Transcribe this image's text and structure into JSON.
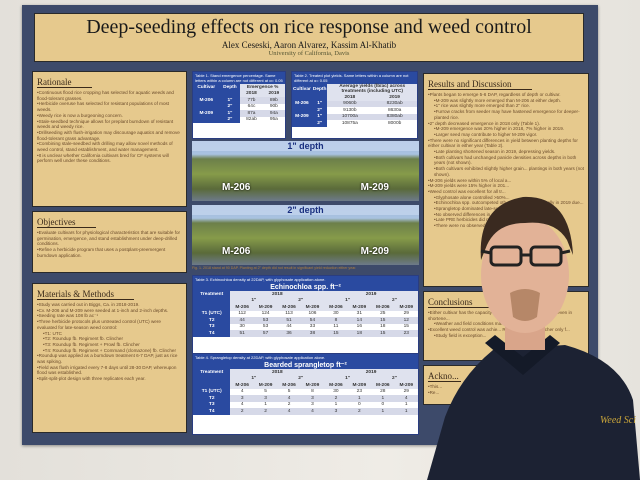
{
  "poster": {
    "title": "Deep-seeding effects on rice response and weed control",
    "authors": "Alex Ceseski, Aaron Alvarez, Kassim Al-Khatib",
    "affiliation": "University of California, Davis",
    "rationale": {
      "heading": "Rationale",
      "items": [
        "Continuous flood rice cropping has selected for aquatic weeds and flood-tolerant grasses.",
        "Herbicide overuse has selected for resistant populations of most weeds.",
        "Weedy rice is now a burgeoning concern.",
        "Stale-seedbed technique allows for preplant burndown of resistant weeds and weedy rice.",
        "Drillseeding with flush-irrigation may discourage aquatics and remove flood-tolerant grass advantage.",
        "Combining stale-seedbed with drilling may allow novel methods of weed control, stand establishment, and water management.",
        "It is unclear whether California cultivars bred for CF systems will perform well under these conditions."
      ]
    },
    "objectives": {
      "heading": "Objectives",
      "items": [
        "Evaluate cultivars for physiological characteristics that are suitable for germination, emergence, and stand establishment under deep-drilled conditions.",
        "Refine a herbicide program that uses a postplant-preemergent burndown application."
      ]
    },
    "methods": {
      "heading": "Materials & Methods",
      "items": [
        {
          "t": "Study was carried out in Biggs, Ca. in 2018-2019.",
          "sub": false
        },
        {
          "t": "Cv. M-206 and M-209 were seeded at 1-inch and 2-inch depths.",
          "sub": false
        },
        {
          "t": "Seeding rate was 108 lb ac⁻¹",
          "sub": false
        },
        {
          "t": "Three herbicide protocols plus untreated control (UTC) were evaluated for late-season weed control:",
          "sub": false
        },
        {
          "t": "T1: UTC",
          "sub": true
        },
        {
          "t": "T2: Roundup fb. Regiment fb. Clincher",
          "sub": true
        },
        {
          "t": "T3: Roundup fb. Regiment + Prowl fb. Clincher",
          "sub": true
        },
        {
          "t": "T4: Roundup fb. Regiment + Command (clomazone) fb. Clincher",
          "sub": true
        },
        {
          "t": "Roundup was applied as a burndown treatment 6-7 DAP, just as rice was spiking.",
          "sub": false
        },
        {
          "t": "Field was flush irrigated every 7-8 days until 28-30 DAP, whereupon flood was established.",
          "sub": false
        },
        {
          "t": "Split-split-plot design with three replicates each year.",
          "sub": false
        }
      ]
    },
    "results": {
      "heading": "Results and Discussion",
      "items": [
        {
          "t": "Plants began to emerge 5-6 DAP, regardless of depth or cultivar.",
          "sub": false
        },
        {
          "t": "M-209 was slightly more emerged than M-206 at either depth.",
          "sub": true
        },
        {
          "t": "1\" rice was slightly more emerged than 2\" rice.",
          "sub": true
        },
        {
          "t": "Furrow cracks from seeder may have hastened emergence for deeper-planted rice.",
          "sub": true
        },
        {
          "t": "2\" depth decreased emergence in 2018 only (Table 1).",
          "sub": false
        },
        {
          "t": "M-209 emergence was 20% higher in 2018, 7% higher in 2019.",
          "sub": true
        },
        {
          "t": "Larger seed may contribute to higher M-209 vigor.",
          "sub": true
        },
        {
          "t": "There were no significant differences in yield between planting depths for either cultivar in either year (Table 2).",
          "sub": false
        },
        {
          "t": "Late planting shortened season in 2019, depressing yields.",
          "sub": true
        },
        {
          "t": "Both cultivars had unchanged panicle densities across depths in both years (not shown).",
          "sub": true
        },
        {
          "t": "Both cultivars exhibited slightly higher grain... plantings in both years (not shown).",
          "sub": true
        },
        {
          "t": "M-206 yields were within 5% of local a...",
          "sub": false
        },
        {
          "t": "M-209 yields were 15% higher in 201...",
          "sub": false
        },
        {
          "t": "Weed control was excellent for all tr...",
          "sub": false
        },
        {
          "t": "Glyphosate alone controlled >50%...",
          "sub": true
        },
        {
          "t": "Echinochloa spp. outcompeted oth... decreased drastically in 2019 due...",
          "sub": true
        },
        {
          "t": "Sprangletop dominated late-seaso...",
          "sub": true
        },
        {
          "t": "No observed differences in contr...",
          "sub": true
        },
        {
          "t": "Late PRE herbicides did not add t...",
          "sub": true
        },
        {
          "t": "There were no observed aquatic w...",
          "sub": true
        }
      ]
    },
    "conclusions": {
      "heading": "Conclusions",
      "items": [
        {
          "t": "Either cultivar has the capacity to provid... drillseed cultivation, even in shortene...",
          "sub": false
        },
        {
          "t": "Weather and field conditions ma...",
          "sub": true
        },
        {
          "t": "Excellent weed control was achie... Regiment, using Clincher only f...",
          "sub": false
        },
        {
          "t": "Study field is exception...",
          "sub": true
        }
      ]
    },
    "acknowledgements": {
      "heading": "Ackno...",
      "items": [
        "This...",
        "Re..."
      ]
    },
    "table1": {
      "caption": "Table 1. Stand emergence percentage. Same letters within a column are not different at α= 0.05",
      "headers": [
        "Cultivar",
        "Depth",
        "Emergence %"
      ],
      "years": [
        "2018",
        "2019"
      ],
      "rows": [
        [
          "M-206",
          "1\"",
          "77b",
          "89b"
        ],
        [
          "",
          "2\"",
          "64c",
          "90b"
        ],
        [
          "M-209",
          "1\"",
          "87a",
          "94a"
        ],
        [
          "",
          "2\"",
          "82ab",
          "95a"
        ]
      ]
    },
    "table2": {
      "caption": "Table 2. Treated plot yields. Same letters within a column are not different at α= 0.05",
      "headers": [
        "Cultivar",
        "Depth",
        "Average yields (lb/ac) across treatments (including UTC)"
      ],
      "years": [
        "2018",
        "2019"
      ],
      "rows": [
        [
          "M-206",
          "1\"",
          "9060b",
          "8230ab"
        ],
        [
          "",
          "2\"",
          "9130b",
          "8630a"
        ],
        [
          "M-209",
          "1\"",
          "10700a",
          "8380ab"
        ],
        [
          "",
          "2\"",
          "10875a",
          "8000b"
        ]
      ]
    },
    "photos": {
      "p1": {
        "label": "1\" depth",
        "left": "M-206",
        "right": "M-209"
      },
      "p2": {
        "label": "2\" depth",
        "left": "M-206",
        "right": "M-209"
      },
      "caption": "Fig. 1. 2018 stand at 90 DAP. Planting at 2\" depth did not result in significant yield reduction either year."
    },
    "table3": {
      "caption": "Table 3. Echinochloa density at 22DAP, with glyphosate application alone.",
      "banner": "Echinochloa spp. ft⁻²",
      "treatment": "Treatment",
      "years": [
        "2018",
        "2019"
      ],
      "depths": [
        "1\"",
        "2\"",
        "1\"",
        "2\""
      ],
      "cultivars": [
        "M-206",
        "M-209",
        "M-206",
        "M-209",
        "M-206",
        "M-209",
        "M-206",
        "M-209"
      ],
      "rows": [
        [
          "T1 (UTC)",
          "112",
          "124",
          "113",
          "106",
          "30",
          "31",
          "25",
          "29"
        ],
        [
          "T2",
          "44",
          "53",
          "51",
          "54",
          "8",
          "14",
          "15",
          "12"
        ],
        [
          "T3",
          "30",
          "53",
          "44",
          "33",
          "11",
          "16",
          "18",
          "15"
        ],
        [
          "T4",
          "51",
          "57",
          "36",
          "38",
          "15",
          "18",
          "15",
          "23"
        ]
      ]
    },
    "table4": {
      "caption": "Table 4. Sprangletop density at 22DAP, with glyphosate application alone.",
      "banner": "Bearded sprangletop ft⁻²",
      "treatment": "Treatment",
      "years": [
        "2018",
        "2019"
      ],
      "depths": [
        "1\"",
        "2\"",
        "1\"",
        "2\""
      ],
      "cultivars": [
        "M-206",
        "M-209",
        "M-206",
        "M-209",
        "M-206",
        "M-209",
        "M-206",
        "M-209"
      ],
      "rows": [
        [
          "T1 (UTC)",
          "4",
          "5",
          "5",
          "8",
          "30",
          "23",
          "28",
          "29"
        ],
        [
          "T2",
          "3",
          "3",
          "4",
          "3",
          "2",
          "1",
          "1",
          "4"
        ],
        [
          "T3",
          "4",
          "1",
          "2",
          "3",
          "1",
          "0",
          "0",
          "1"
        ],
        [
          "T4",
          "2",
          "2",
          "4",
          "4",
          "3",
          "2",
          "1",
          "1"
        ]
      ]
    }
  },
  "shirt_logo": "Weed Sci",
  "colors": {
    "poster_frame": "#3d4a6a",
    "panel": "#e6c98d",
    "table_header": "#2a4aa0",
    "shirt": "#1c2233"
  }
}
